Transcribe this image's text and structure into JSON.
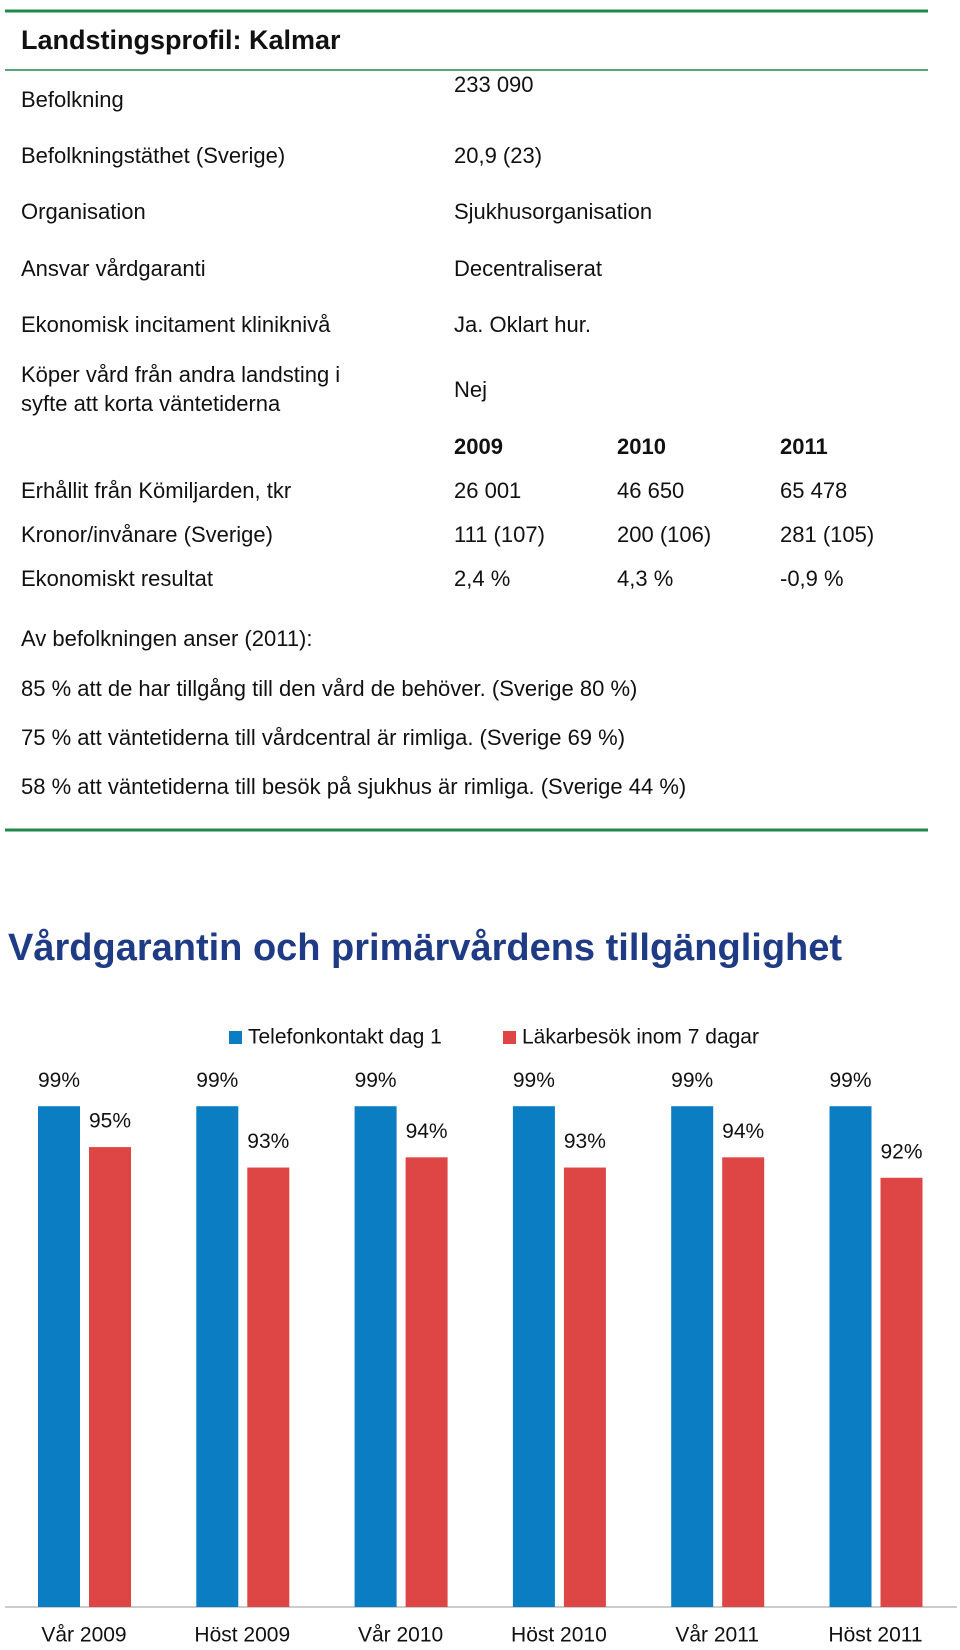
{
  "profile": {
    "title": "Landstingsprofil: Kalmar",
    "facts": [
      {
        "label": [
          "Befolkning"
        ],
        "value": "233 090"
      },
      {
        "label": [
          "Befolkningstäthet (Sverige)"
        ],
        "value": "20,9 (23)"
      },
      {
        "label": [
          "Organisation"
        ],
        "value": "Sjukhusorganisation"
      },
      {
        "label": [
          "Ansvar vårdgaranti"
        ],
        "value": "Decentraliserat"
      },
      {
        "label": [
          "Ekonomisk incitament kliniknivå"
        ],
        "value": "Ja. Oklart hur."
      },
      {
        "label": [
          "Köper vård från andra landsting i",
          "syfte att korta väntetiderna"
        ],
        "value": "Nej"
      }
    ],
    "table": {
      "columns": [
        "2009",
        "2010",
        "2011"
      ],
      "rows": [
        {
          "label": "Erhållit från Kömiljarden, tkr",
          "values": [
            "26 001",
            "46 650",
            "65 478"
          ]
        },
        {
          "label": "Kronor/invånare (Sverige)",
          "values": [
            "111 (107)",
            "200 (106)",
            "281 (105)"
          ]
        },
        {
          "label": "Ekonomiskt resultat",
          "values": [
            "2,4 %",
            "4,3 %",
            "-0,9 %"
          ]
        }
      ]
    },
    "survey": {
      "heading": "Av befolkningen anser (2011):",
      "lines": [
        "85 % att de har tillgång till den vård de behöver. (Sverige 80 %)",
        "75 % att väntetiderna till vårdcentral är rimliga. (Sverige 69 %)",
        "58 % att väntetiderna till besök på sjukhus är rimliga. (Sverige 44 %)"
      ]
    }
  },
  "chart_data": {
    "type": "bar",
    "title": "Vårdgarantin och primärvårdens tillgänglighet",
    "categories": [
      "Vår 2009",
      "Höst 2009",
      "Vår 2010",
      "Höst 2010",
      "Vår 2011",
      "Höst 2011"
    ],
    "ylim": [
      50,
      100
    ],
    "series": [
      {
        "name": "Telefonkontakt dag 1",
        "color": "#0b7dc2",
        "values": [
          99,
          99,
          99,
          99,
          99,
          99
        ],
        "value_labels": [
          "99%",
          "99%",
          "99%",
          "99%",
          "99%",
          "99%"
        ]
      },
      {
        "name": "Läkarbesök inom 7 dagar",
        "color": "#de4545",
        "values": [
          95,
          93,
          94,
          93,
          94,
          92
        ],
        "value_labels": [
          "95%",
          "93%",
          "94%",
          "93%",
          "94%",
          "92%"
        ]
      }
    ]
  }
}
